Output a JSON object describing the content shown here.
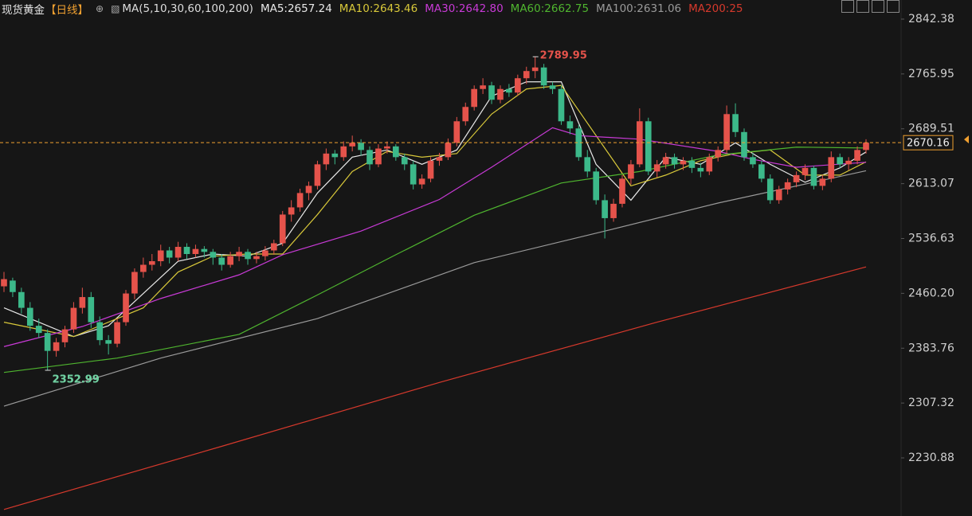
{
  "chart_data": {
    "type": "candlestick",
    "title": "现货黄金",
    "period": "【日线】",
    "indicator": "MA(5,10,30,60,100,200)",
    "ylim": [
      2149.9,
      2869.0
    ],
    "yticks": [
      2842.38,
      2765.95,
      2689.51,
      2613.07,
      2536.63,
      {
        "value": 2460.2,
        "label": "2460.20"
      },
      2383.76,
      2307.32,
      2230.88
    ],
    "grid": false,
    "up_color": "#e5534b",
    "down_color": "#3cb98a",
    "ohlc": [
      [
        2470,
        2490,
        2462,
        2480
      ],
      [
        2478,
        2482,
        2455,
        2462
      ],
      [
        2462,
        2468,
        2432,
        2440
      ],
      [
        2440,
        2448,
        2408,
        2415
      ],
      [
        2415,
        2425,
        2398,
        2405
      ],
      [
        2405,
        2410,
        2352.99,
        2380
      ],
      [
        2380,
        2398,
        2372,
        2392
      ],
      [
        2392,
        2415,
        2385,
        2410
      ],
      [
        2410,
        2448,
        2405,
        2440
      ],
      [
        2440,
        2468,
        2432,
        2455
      ],
      [
        2455,
        2462,
        2412,
        2420
      ],
      [
        2420,
        2428,
        2388,
        2395
      ],
      [
        2395,
        2402,
        2375,
        2390
      ],
      [
        2390,
        2425,
        2385,
        2420
      ],
      [
        2420,
        2465,
        2415,
        2460
      ],
      [
        2460,
        2495,
        2452,
        2490
      ],
      [
        2490,
        2510,
        2482,
        2500
      ],
      [
        2500,
        2515,
        2492,
        2505
      ],
      [
        2505,
        2528,
        2498,
        2520
      ],
      [
        2520,
        2525,
        2502,
        2510
      ],
      [
        2510,
        2532,
        2505,
        2525
      ],
      [
        2525,
        2530,
        2508,
        2515
      ],
      [
        2515,
        2528,
        2510,
        2522
      ],
      [
        2522,
        2526,
        2510,
        2518
      ],
      [
        2518,
        2522,
        2500,
        2510
      ],
      [
        2510,
        2515,
        2492,
        2500
      ],
      [
        2500,
        2518,
        2496,
        2512
      ],
      [
        2512,
        2525,
        2505,
        2518
      ],
      [
        2518,
        2522,
        2500,
        2508
      ],
      [
        2508,
        2518,
        2502,
        2512
      ],
      [
        2512,
        2526,
        2506,
        2520
      ],
      [
        2520,
        2535,
        2514,
        2530
      ],
      [
        2530,
        2575,
        2526,
        2570
      ],
      [
        2570,
        2590,
        2560,
        2580
      ],
      [
        2580,
        2606,
        2574,
        2600
      ],
      [
        2600,
        2616,
        2590,
        2610
      ],
      [
        2610,
        2645,
        2605,
        2640
      ],
      [
        2640,
        2662,
        2632,
        2655
      ],
      [
        2655,
        2660,
        2640,
        2650
      ],
      [
        2650,
        2672,
        2645,
        2665
      ],
      [
        2665,
        2680,
        2658,
        2670
      ],
      [
        2670,
        2675,
        2652,
        2660
      ],
      [
        2660,
        2665,
        2632,
        2640
      ],
      [
        2640,
        2668,
        2636,
        2662
      ],
      [
        2662,
        2672,
        2655,
        2665
      ],
      [
        2665,
        2668,
        2645,
        2650
      ],
      [
        2650,
        2655,
        2632,
        2640
      ],
      [
        2640,
        2645,
        2605,
        2612
      ],
      [
        2612,
        2626,
        2606,
        2620
      ],
      [
        2620,
        2650,
        2615,
        2645
      ],
      [
        2645,
        2656,
        2638,
        2650
      ],
      [
        2650,
        2676,
        2646,
        2670
      ],
      [
        2670,
        2706,
        2665,
        2700
      ],
      [
        2700,
        2726,
        2694,
        2720
      ],
      [
        2720,
        2750,
        2715,
        2745
      ],
      [
        2745,
        2760,
        2738,
        2750
      ],
      [
        2750,
        2755,
        2724,
        2730
      ],
      [
        2730,
        2750,
        2725,
        2745
      ],
      [
        2745,
        2752,
        2734,
        2740
      ],
      [
        2740,
        2765,
        2736,
        2760
      ],
      [
        2760,
        2776,
        2752,
        2770
      ],
      [
        2770,
        2789.95,
        2760,
        2775
      ],
      [
        2775,
        2780,
        2745,
        2750
      ],
      [
        2750,
        2755,
        2738,
        2745
      ],
      [
        2745,
        2750,
        2695,
        2700
      ],
      [
        2700,
        2708,
        2682,
        2690
      ],
      [
        2690,
        2695,
        2645,
        2650
      ],
      [
        2650,
        2660,
        2622,
        2630
      ],
      [
        2630,
        2635,
        2584,
        2590
      ],
      [
        2590,
        2598,
        2536.68,
        2565
      ],
      [
        2565,
        2592,
        2560,
        2585
      ],
      [
        2585,
        2625,
        2580,
        2620
      ],
      [
        2620,
        2646,
        2612,
        2640
      ],
      [
        2640,
        2718,
        2636,
        2700
      ],
      [
        2700,
        2705,
        2625,
        2630
      ],
      [
        2630,
        2646,
        2622,
        2640
      ],
      [
        2640,
        2656,
        2634,
        2650
      ],
      [
        2650,
        2655,
        2634,
        2640
      ],
      [
        2640,
        2650,
        2632,
        2645
      ],
      [
        2645,
        2650,
        2628,
        2635
      ],
      [
        2635,
        2642,
        2622,
        2630
      ],
      [
        2630,
        2655,
        2625,
        2650
      ],
      [
        2650,
        2665,
        2644,
        2660
      ],
      [
        2660,
        2722,
        2655,
        2710
      ],
      [
        2710,
        2725,
        2678,
        2685
      ],
      [
        2685,
        2690,
        2645,
        2650
      ],
      [
        2650,
        2656,
        2635,
        2640
      ],
      [
        2640,
        2645,
        2615,
        2620
      ],
      [
        2620,
        2626,
        2585,
        2590
      ],
      [
        2590,
        2610,
        2585,
        2605
      ],
      [
        2605,
        2620,
        2598,
        2615
      ],
      [
        2615,
        2630,
        2608,
        2625
      ],
      [
        2625,
        2640,
        2618,
        2635
      ],
      [
        2635,
        2638,
        2605,
        2610
      ],
      [
        2610,
        2625,
        2604,
        2620
      ],
      [
        2620,
        2658,
        2615,
        2650
      ],
      [
        2650,
        2655,
        2635,
        2640
      ],
      [
        2640,
        2650,
        2632,
        2645
      ],
      [
        2645,
        2665,
        2640,
        2660
      ],
      [
        2660,
        2675,
        2655,
        2670.16
      ]
    ],
    "series": [
      {
        "name": "MA5:2657.24",
        "color": "#e8e8e8",
        "x": [
          0,
          4,
          8,
          12,
          16,
          20,
          24,
          28,
          32,
          36,
          40,
          44,
          48,
          52,
          56,
          60,
          64,
          68,
          72,
          76,
          80,
          84,
          88,
          92,
          96,
          99
        ],
        "values": [
          2440,
          2420,
          2400,
          2415,
          2460,
          2505,
          2515,
          2512,
          2530,
          2600,
          2650,
          2660,
          2640,
          2660,
          2735,
          2755,
          2755,
          2640,
          2590,
          2650,
          2640,
          2670,
          2640,
          2615,
          2635,
          2657.24
        ]
      },
      {
        "name": "MA10:2643.46",
        "color": "#d8c83a",
        "x": [
          0,
          4,
          8,
          12,
          16,
          20,
          24,
          28,
          32,
          36,
          40,
          44,
          48,
          52,
          56,
          60,
          64,
          68,
          72,
          76,
          80,
          84,
          88,
          92,
          96,
          99
        ],
        "values": [
          2420,
          2410,
          2400,
          2420,
          2440,
          2490,
          2512,
          2515,
          2515,
          2570,
          2630,
          2658,
          2650,
          2655,
          2710,
          2745,
          2750,
          2680,
          2610,
          2625,
          2645,
          2655,
          2660,
          2625,
          2625,
          2643.46
        ]
      },
      {
        "name": "MA30:2642.80",
        "color": "#c83ad6",
        "x": [
          0,
          9,
          18,
          27,
          32,
          41,
          50,
          56,
          63,
          66,
          73,
          82,
          86,
          91,
          99
        ],
        "values": [
          2386,
          2414,
          2453,
          2486,
          2514,
          2547,
          2591,
          2636,
          2691,
          2680,
          2675,
          2658,
          2647,
          2636,
          2642.8
        ]
      },
      {
        "name": "MA60:2662.75",
        "color": "#4fb52f",
        "x": [
          0,
          13,
          27,
          36,
          45,
          54,
          64,
          73,
          82,
          91,
          99
        ],
        "values": [
          2350,
          2370,
          2403,
          2458,
          2514,
          2569,
          2614,
          2630,
          2653,
          2664,
          2662.75
        ]
      },
      {
        "name": "MA100:2631.06",
        "color": "#9a9a9a",
        "x": [
          0,
          18,
          36,
          54,
          69,
          82,
          99
        ],
        "values": [
          2303,
          2370,
          2425,
          2503,
          2547,
          2586,
          2631.06
        ]
      },
      {
        "name": "MA200:25",
        "color": "#d6392c",
        "x": [
          0,
          25,
          50,
          75,
          99
        ],
        "values": [
          2159,
          2247,
          2336,
          2420,
          2497
        ]
      }
    ],
    "price_line_color": "#f0a030"
  }
}
